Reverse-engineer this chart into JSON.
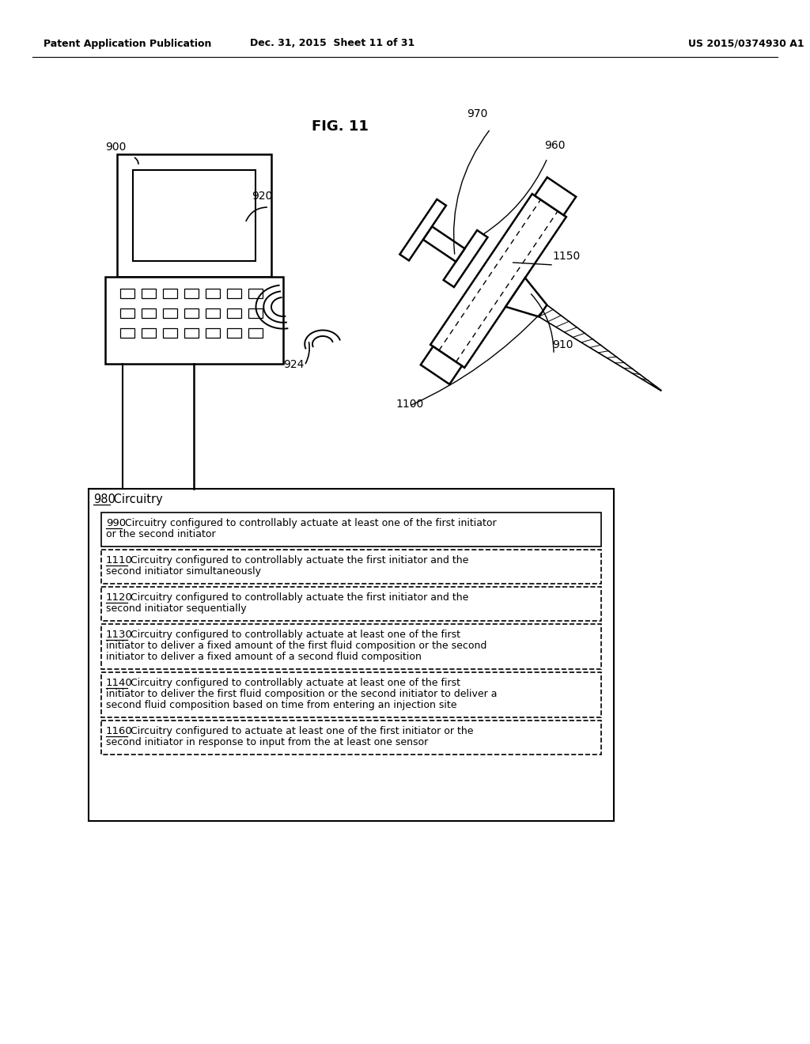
{
  "background_color": "#ffffff",
  "header_left": "Patent Application Publication",
  "header_middle": "Dec. 31, 2015  Sheet 11 of 31",
  "header_right": "US 2015/0374930 A1",
  "fig_label": "FIG. 11",
  "label_900": "900",
  "label_920": "920",
  "label_924": "924",
  "label_910": "910",
  "label_960": "960",
  "label_970": "970",
  "label_1100": "1100",
  "label_1150": "1150",
  "circuitry_id": "980",
  "circuitry_title": " Circuitry",
  "items": [
    {
      "id": "990",
      "lines": [
        "Circuitry configured to controllably actuate at least one of the first initiator",
        "or the second initiator"
      ],
      "dashed": false
    },
    {
      "id": "1110",
      "lines": [
        "Circuitry configured to controllably actuate the first initiator and the",
        "second initiator simultaneously"
      ],
      "dashed": true
    },
    {
      "id": "1120",
      "lines": [
        "Circuitry configured to controllably actuate the first initiator and the",
        "second initiator sequentially"
      ],
      "dashed": true
    },
    {
      "id": "1130",
      "lines": [
        "Circuitry configured to controllably actuate at least one of the first",
        "initiator to deliver a fixed amount of the first fluid composition or the second",
        "initiator to deliver a fixed amount of a second fluid composition"
      ],
      "dashed": true
    },
    {
      "id": "1140",
      "lines": [
        "Circuitry configured to controllably actuate at least one of the first",
        "initiator to deliver the first fluid composition or the second initiator to deliver a",
        "second fluid composition based on time from entering an injection site"
      ],
      "dashed": true
    },
    {
      "id": "1160",
      "lines": [
        "Circuitry configured to actuate at least one of the first initiator or the",
        "second initiator in response to input from the at least one sensor"
      ],
      "dashed": true
    }
  ]
}
